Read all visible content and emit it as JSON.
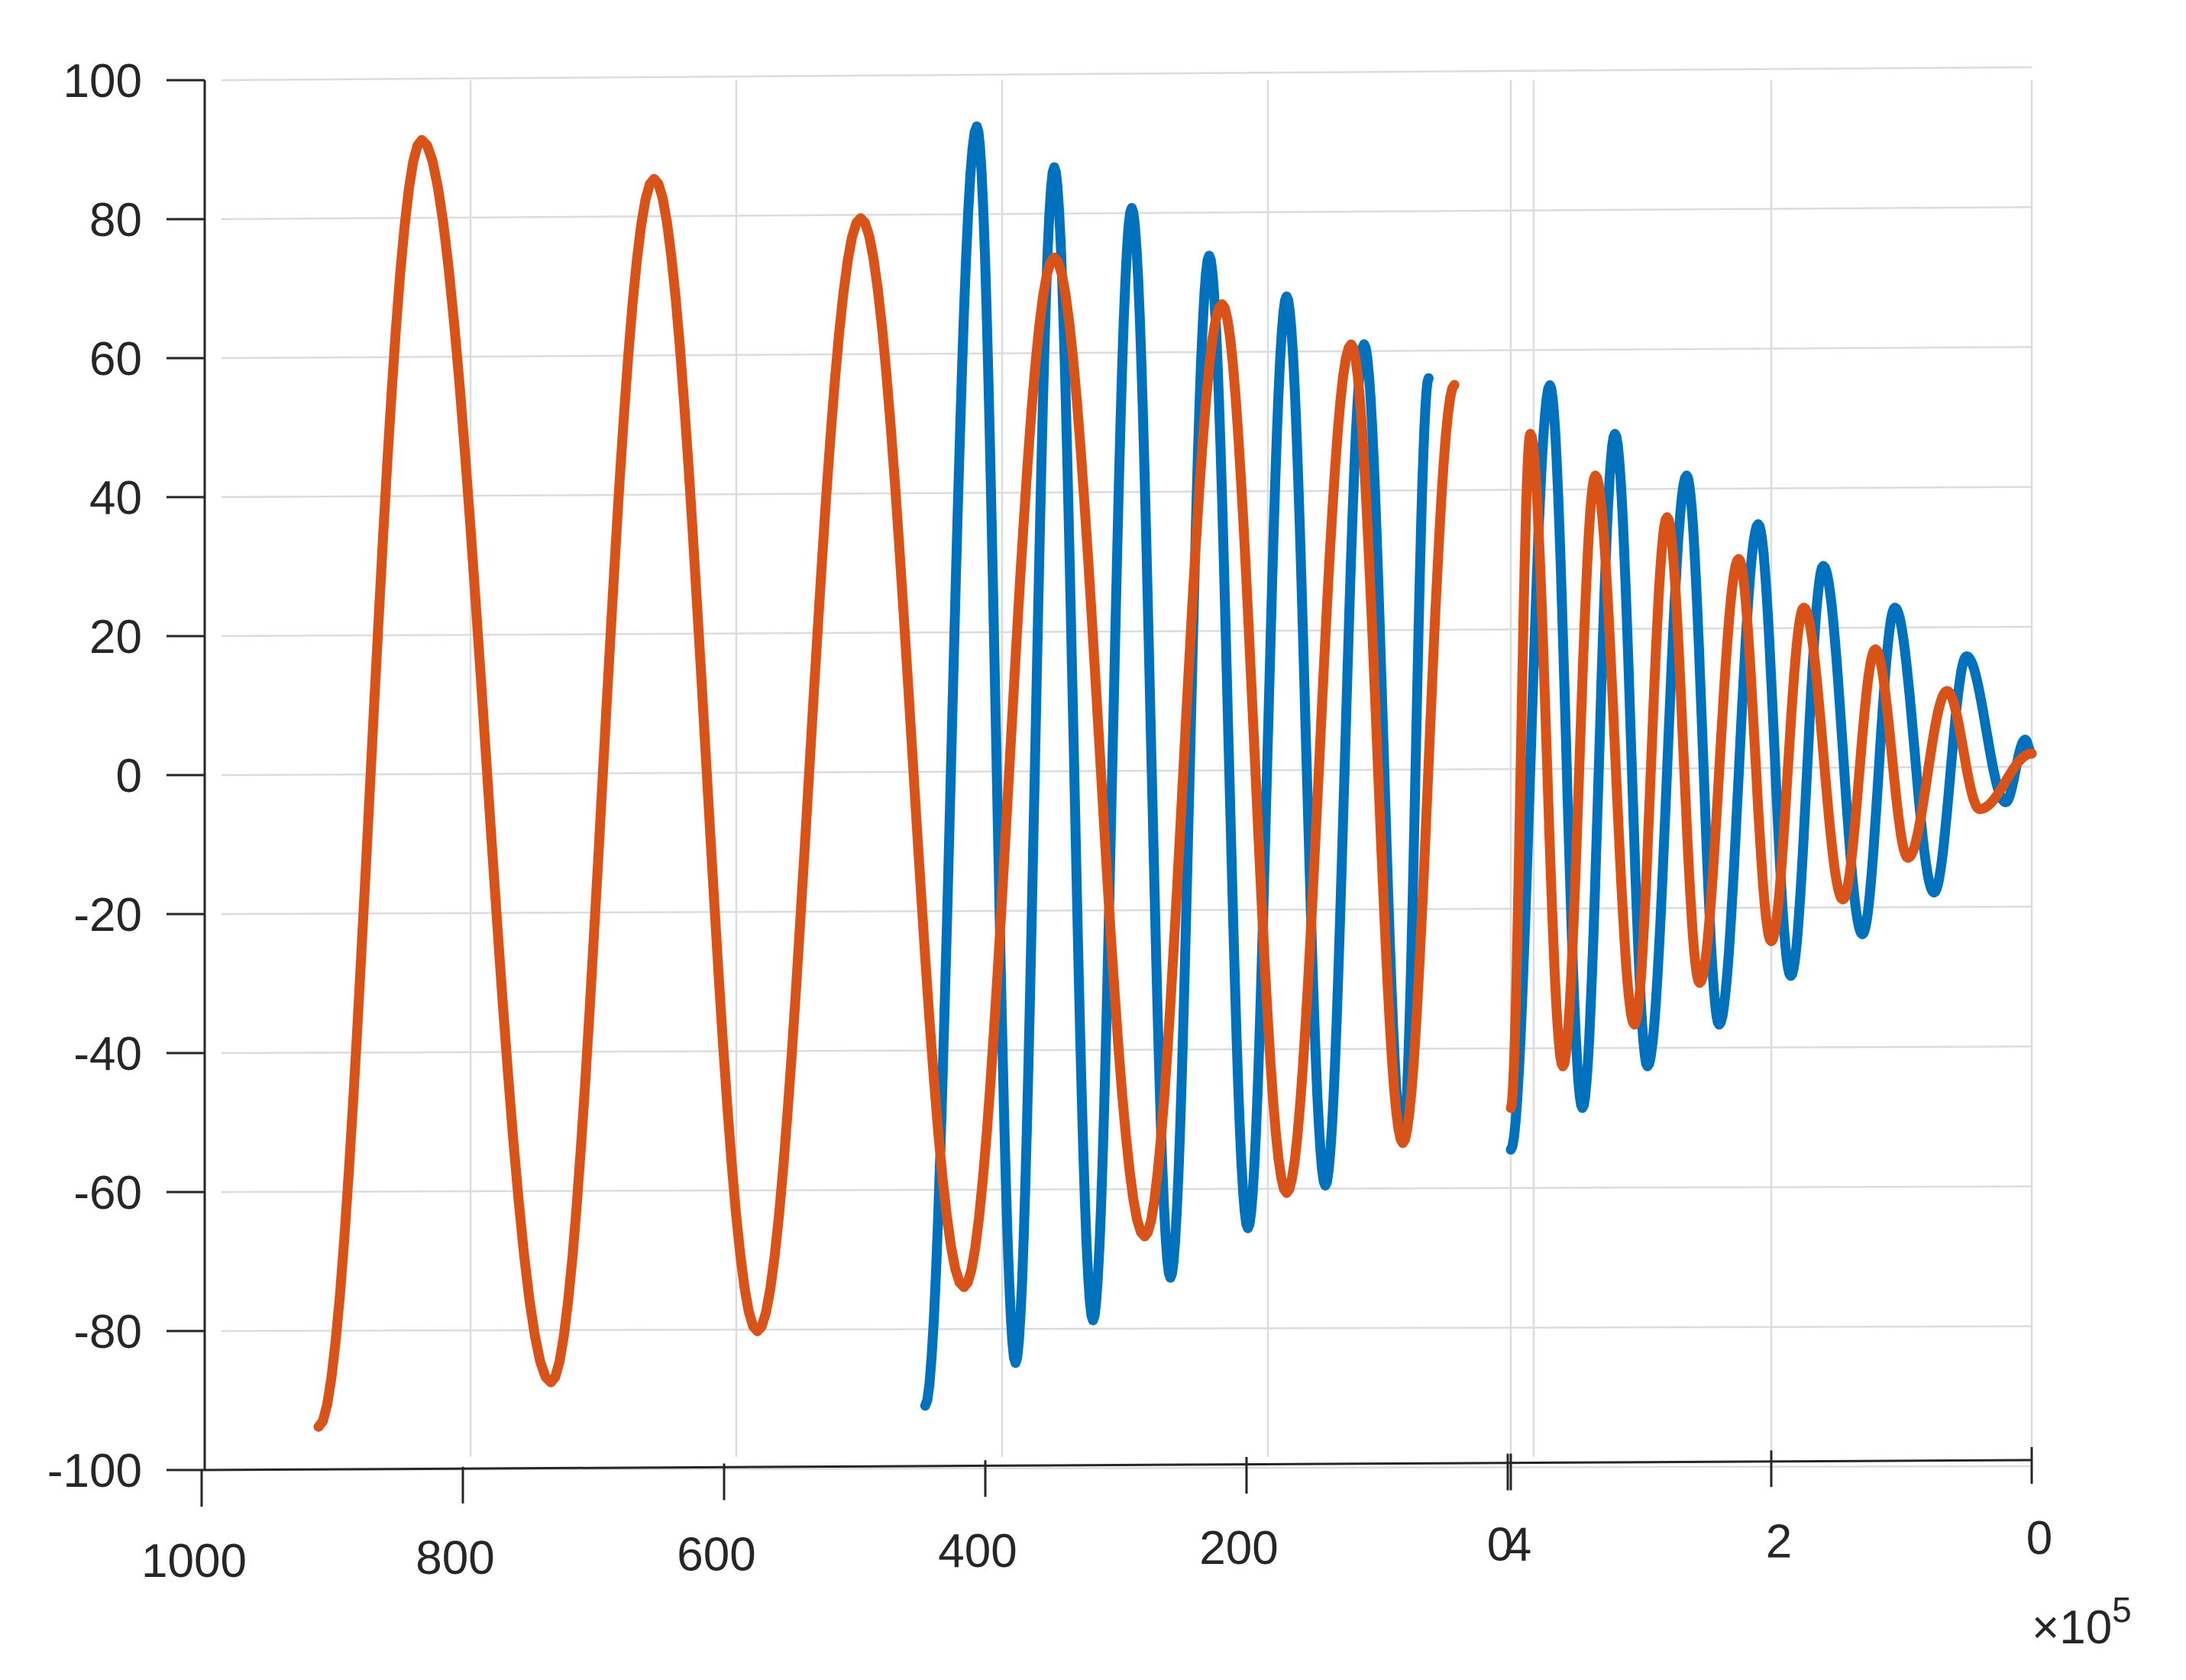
{
  "chart_data": {
    "type": "line",
    "view": "3d",
    "title": "",
    "xlabel": "",
    "ylabel": "",
    "zlabel": "",
    "grid": true,
    "legend": "none",
    "axes": {
      "z": {
        "range": [
          -100,
          100
        ],
        "ticks": [
          100,
          80,
          60,
          40,
          20,
          0,
          -20,
          -40,
          -60,
          -80,
          -100
        ],
        "tick_labels": [
          "100",
          "80",
          "60",
          "40",
          "20",
          "0",
          "-20",
          "-40",
          "-60",
          "-80",
          "-100"
        ]
      },
      "x": {
        "range": [
          1000,
          0
        ],
        "ticks": [
          1000,
          800,
          600,
          400,
          200,
          0
        ],
        "tick_labels": [
          "1000",
          "800",
          "600",
          "400",
          "200",
          "0"
        ]
      },
      "y": {
        "range": [
          400000,
          0
        ],
        "ticks": [
          400000,
          200000,
          0
        ],
        "tick_labels": [
          "4",
          "2",
          "0"
        ],
        "exponent_label": "×10",
        "exponent_power": "5"
      }
    },
    "series": [
      {
        "color": "#0072BD",
        "axis": "x",
        "x_range": [
          430,
          0
        ],
        "peaks": [
          {
            "x": 390,
            "z": 92
          },
          {
            "x": 360,
            "z": -86
          },
          {
            "x": 330,
            "z": 86
          },
          {
            "x": 300,
            "z": -80
          },
          {
            "x": 270,
            "z": 80
          },
          {
            "x": 240,
            "z": -74
          },
          {
            "x": 210,
            "z": 73
          },
          {
            "x": 180,
            "z": -67
          },
          {
            "x": 150,
            "z": 67
          },
          {
            "x": 120,
            "z": -61
          },
          {
            "x": 90,
            "z": 60
          },
          {
            "x": 60,
            "z": -55
          },
          {
            "x": 40,
            "z": 55
          }
        ],
        "start_z": -92
      },
      {
        "color": "#D95319",
        "axis": "x",
        "x_range": [
          900,
          0
        ],
        "peaks": [
          {
            "x": 820,
            "z": 91
          },
          {
            "x": 720,
            "z": -88
          },
          {
            "x": 640,
            "z": 85
          },
          {
            "x": 560,
            "z": -81
          },
          {
            "x": 480,
            "z": 79
          },
          {
            "x": 400,
            "z": -75
          },
          {
            "x": 330,
            "z": 73
          },
          {
            "x": 260,
            "z": -68
          },
          {
            "x": 200,
            "z": 66
          },
          {
            "x": 150,
            "z": -62
          },
          {
            "x": 100,
            "z": 60
          },
          {
            "x": 60,
            "z": -55
          },
          {
            "x": 20,
            "z": 54
          }
        ],
        "start_z": -94
      },
      {
        "color": "#0072BD",
        "axis": "y",
        "y_range": [
          400000,
          0
        ],
        "peaks": [
          {
            "y": 400000,
            "z": -55
          },
          {
            "y": 370000,
            "z": 55
          },
          {
            "y": 345000,
            "z": -49
          },
          {
            "y": 320000,
            "z": 48
          },
          {
            "y": 295000,
            "z": -43
          },
          {
            "y": 265000,
            "z": 42
          },
          {
            "y": 240000,
            "z": -37
          },
          {
            "y": 210000,
            "z": 35
          },
          {
            "y": 185000,
            "z": -30
          },
          {
            "y": 160000,
            "z": 29
          },
          {
            "y": 130000,
            "z": -24
          },
          {
            "y": 105000,
            "z": 23
          },
          {
            "y": 75000,
            "z": -18
          },
          {
            "y": 50000,
            "z": 16
          },
          {
            "y": 20000,
            "z": -5
          },
          {
            "y": 5000,
            "z": 4
          }
        ],
        "end_z": 2
      },
      {
        "color": "#D95319",
        "axis": "y",
        "y_range": [
          400000,
          0
        ],
        "peaks": [
          {
            "y": 400000,
            "z": -49
          },
          {
            "y": 385000,
            "z": 48
          },
          {
            "y": 360000,
            "z": -43
          },
          {
            "y": 335000,
            "z": 42
          },
          {
            "y": 305000,
            "z": -37
          },
          {
            "y": 280000,
            "z": 36
          },
          {
            "y": 255000,
            "z": -31
          },
          {
            "y": 225000,
            "z": 30
          },
          {
            "y": 200000,
            "z": -25
          },
          {
            "y": 175000,
            "z": 23
          },
          {
            "y": 145000,
            "z": -19
          },
          {
            "y": 120000,
            "z": 17
          },
          {
            "y": 95000,
            "z": -13
          },
          {
            "y": 65000,
            "z": 11
          },
          {
            "y": 40000,
            "z": -6
          }
        ],
        "end_z": 2
      }
    ]
  }
}
